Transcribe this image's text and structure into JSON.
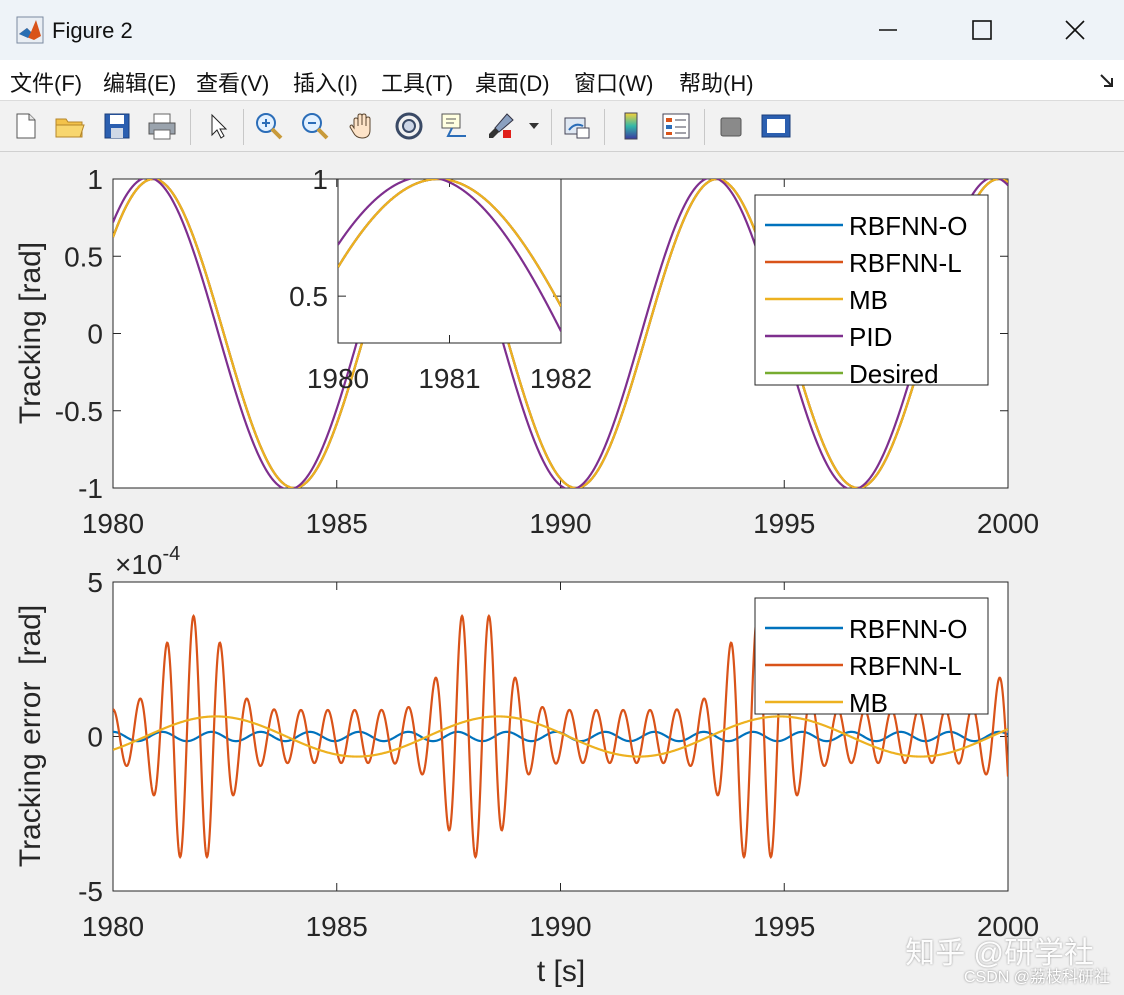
{
  "window": {
    "title": "Figure 2"
  },
  "menu": [
    "文件(F)",
    "编辑(E)",
    "查看(V)",
    "插入(I)",
    "工具(T)",
    "桌面(D)",
    "窗口(W)",
    "帮助(H)"
  ],
  "toolbar": [
    "new-figure-icon",
    "open-folder-icon",
    "save-icon",
    "print-icon",
    "pointer-icon",
    "zoom-in-icon",
    "zoom-out-icon",
    "pan-hand-icon",
    "rotate-3d-icon",
    "data-cursor-icon",
    "brush-icon",
    "link-plot-icon",
    "colorbar-icon",
    "legend-icon",
    "hide-plot-tools-icon",
    "show-plot-tools-icon"
  ],
  "colors": {
    "RBFNN-O": "#0072bd",
    "RBFNN-L": "#d95319",
    "MB": "#edb120",
    "PID": "#7e2f8e",
    "Desired": "#77ac30"
  },
  "watermark": {
    "main": "知乎 @研学社",
    "sub": "CSDN @荔枝科研社"
  },
  "chart_data": [
    {
      "type": "line",
      "ylabel": "Tracking [rad]",
      "xlabel": "",
      "xlim": [
        1980,
        2000
      ],
      "ylim": [
        -1,
        1
      ],
      "xticks": [
        "1980",
        "1985",
        "1990",
        "1995",
        "2000"
      ],
      "yticks": [
        "-1",
        "-0.5",
        "0",
        "0.5",
        "1"
      ],
      "legend": {
        "position": "top-right",
        "entries": [
          "RBFNN-O",
          "RBFNN-L",
          "MB",
          "PID",
          "Desired"
        ]
      },
      "series": [
        {
          "name": "Desired",
          "model": "sine",
          "amplitude": 1.0,
          "period": 6.3,
          "peak_at": 1980.9
        },
        {
          "name": "RBFNN-O",
          "model": "sine",
          "amplitude": 1.0,
          "period": 6.3,
          "peak_at": 1980.9
        },
        {
          "name": "RBFNN-L",
          "model": "sine",
          "amplitude": 1.0,
          "period": 6.3,
          "peak_at": 1980.9
        },
        {
          "name": "MB",
          "model": "sine",
          "amplitude": 1.0,
          "period": 6.3,
          "peak_at": 1980.9
        },
        {
          "name": "PID",
          "model": "sine",
          "amplitude": 1.01,
          "period": 6.3,
          "peak_at": 1980.78
        }
      ],
      "inset": {
        "xlim": [
          1980,
          1982
        ],
        "ylim": [
          0.3,
          1.0
        ],
        "xticks": [
          "1980",
          "1981",
          "1982"
        ],
        "yticks": [
          "0.5",
          "1"
        ]
      }
    },
    {
      "type": "line",
      "ylabel": "Tracking error  [rad]",
      "xlabel": "t [s]",
      "xlim": [
        1980,
        2000
      ],
      "ylim": [
        -5,
        5
      ],
      "y_multiplier": "×10",
      "y_exponent": "-4",
      "xticks": [
        "1980",
        "1985",
        "1990",
        "1995",
        "2000"
      ],
      "yticks": [
        "-5",
        "0",
        "5"
      ],
      "legend": {
        "position": "top-right",
        "entries": [
          "RBFNN-O",
          "RBFNN-L",
          "MB"
        ]
      },
      "series": [
        {
          "name": "RBFNN-O",
          "model": "sine",
          "amplitude": 0.15,
          "period": 1.1
        },
        {
          "name": "RBFNN-L",
          "model": "wave-packets",
          "amplitude": 3.9,
          "carrier_period": 0.6,
          "envelope_period": 6.3,
          "packet_centers": [
            1981.8,
            1988.1,
            1994.4
          ]
        },
        {
          "name": "MB",
          "model": "sine",
          "amplitude": 0.65,
          "period": 6.3,
          "peak_at": 1982.3
        }
      ]
    }
  ]
}
